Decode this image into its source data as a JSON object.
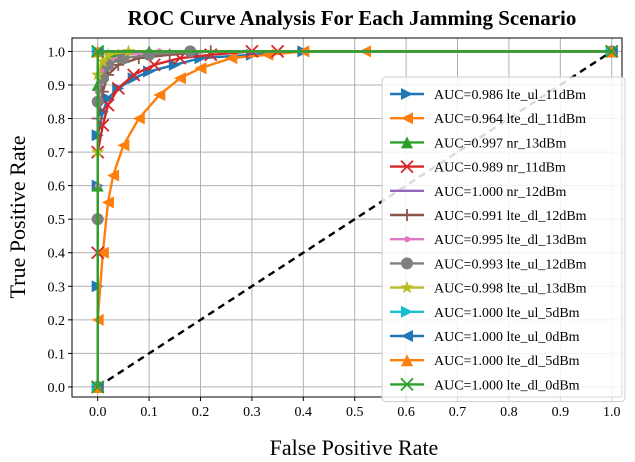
{
  "chart_data": {
    "type": "line",
    "title": "ROC Curve Analysis For Each Jamming Scenario",
    "xlabel": "False Positive Rate",
    "ylabel": "True Positive Rate",
    "xlim": [
      -0.05,
      1.02
    ],
    "ylim": [
      -0.03,
      1.04
    ],
    "xticks": [
      "0.0",
      "0.1",
      "0.2",
      "0.3",
      "0.4",
      "0.5",
      "0.6",
      "0.7",
      "0.8",
      "0.9",
      "1.0"
    ],
    "yticks": [
      "0.0",
      "0.1",
      "0.2",
      "0.3",
      "0.4",
      "0.5",
      "0.6",
      "0.7",
      "0.8",
      "0.9",
      "1.0"
    ],
    "grid": true,
    "legend_position": "right",
    "series": [
      {
        "name": "AUC=0.986 lte_ul_11dBm",
        "color": "#1f77b4",
        "marker": "triangle-right",
        "x": [
          0.0,
          0.0,
          0.0,
          0.0,
          0.01,
          0.02,
          0.04,
          0.07,
          0.1,
          0.15,
          0.2,
          0.3,
          0.4,
          1.0
        ],
        "y": [
          0.0,
          0.3,
          0.6,
          0.75,
          0.82,
          0.86,
          0.89,
          0.92,
          0.94,
          0.96,
          0.98,
          0.99,
          1.0,
          1.0
        ]
      },
      {
        "name": "AUC=0.964 lte_dl_11dBm",
        "color": "#ff7f0e",
        "marker": "triangle-left",
        "x": [
          0.0,
          0.0,
          0.01,
          0.02,
          0.03,
          0.05,
          0.08,
          0.12,
          0.16,
          0.2,
          0.26,
          0.33,
          0.4,
          0.52,
          1.0
        ],
        "y": [
          0.0,
          0.2,
          0.4,
          0.55,
          0.63,
          0.72,
          0.8,
          0.87,
          0.92,
          0.95,
          0.98,
          0.99,
          1.0,
          1.0,
          1.0
        ]
      },
      {
        "name": "AUC=0.997 nr_13dBm",
        "color": "#2ca02c",
        "marker": "triangle-up",
        "x": [
          0.0,
          0.0,
          0.0,
          0.01,
          0.02,
          0.04,
          0.1,
          1.0
        ],
        "y": [
          0.0,
          0.6,
          0.9,
          0.95,
          0.98,
          0.99,
          1.0,
          1.0
        ]
      },
      {
        "name": "AUC=0.989 nr_11dBm",
        "color": "#d62728",
        "marker": "x",
        "x": [
          0.0,
          0.0,
          0.0,
          0.01,
          0.02,
          0.04,
          0.07,
          0.11,
          0.16,
          0.22,
          0.3,
          0.35,
          1.0
        ],
        "y": [
          0.0,
          0.4,
          0.7,
          0.78,
          0.84,
          0.89,
          0.93,
          0.96,
          0.98,
          0.99,
          1.0,
          1.0,
          1.0
        ]
      },
      {
        "name": "AUC=1.000 nr_12dBm",
        "color": "#9467bd",
        "marker": "line",
        "x": [
          0.0,
          0.0,
          1.0
        ],
        "y": [
          0.0,
          1.0,
          1.0
        ]
      },
      {
        "name": "AUC=0.991 lte_dl_12dBm",
        "color": "#8c564b",
        "marker": "plus",
        "x": [
          0.0,
          0.0,
          0.0,
          0.01,
          0.02,
          0.04,
          0.08,
          0.14,
          0.22,
          1.0
        ],
        "y": [
          0.0,
          0.5,
          0.8,
          0.88,
          0.93,
          0.96,
          0.98,
          0.99,
          1.0,
          1.0
        ]
      },
      {
        "name": "AUC=0.995 lte_dl_13dBm",
        "color": "#e377c2",
        "marker": "dot",
        "x": [
          0.0,
          0.0,
          0.0,
          0.01,
          0.02,
          0.05,
          0.12,
          1.0
        ],
        "y": [
          0.0,
          0.6,
          0.88,
          0.94,
          0.97,
          0.99,
          1.0,
          1.0
        ]
      },
      {
        "name": "AUC=0.993 lte_ul_12dBm",
        "color": "#7f7f7f",
        "marker": "circle",
        "x": [
          0.0,
          0.0,
          0.0,
          0.01,
          0.02,
          0.05,
          0.1,
          0.18,
          1.0
        ],
        "y": [
          0.0,
          0.5,
          0.85,
          0.92,
          0.96,
          0.98,
          0.99,
          1.0,
          1.0
        ]
      },
      {
        "name": "AUC=0.998 lte_ul_13dBm",
        "color": "#bcbd22",
        "marker": "star",
        "x": [
          0.0,
          0.0,
          0.0,
          0.01,
          0.02,
          0.06,
          1.0
        ],
        "y": [
          0.0,
          0.7,
          0.93,
          0.97,
          0.99,
          1.0,
          1.0
        ]
      },
      {
        "name": "AUC=1.000 lte_ul_5dBm",
        "color": "#17becf",
        "marker": "triangle-right",
        "x": [
          0.0,
          0.0,
          1.0
        ],
        "y": [
          0.0,
          1.0,
          1.0
        ]
      },
      {
        "name": "AUC=1.000 lte_ul_0dBm",
        "color": "#1f77b4",
        "marker": "triangle-left",
        "x": [
          0.0,
          0.0,
          1.0
        ],
        "y": [
          0.0,
          1.0,
          1.0
        ]
      },
      {
        "name": "AUC=1.000 lte_dl_5dBm",
        "color": "#ff7f0e",
        "marker": "triangle-up",
        "x": [
          0.0,
          0.0,
          1.0
        ],
        "y": [
          0.0,
          1.0,
          1.0
        ]
      },
      {
        "name": "AUC=1.000 lte_dl_0dBm",
        "color": "#2ca02c",
        "marker": "x",
        "x": [
          0.0,
          0.0,
          1.0
        ],
        "y": [
          0.0,
          1.0,
          1.0
        ]
      }
    ],
    "reference_line": {
      "x": [
        0.0,
        1.0
      ],
      "y": [
        0.0,
        1.0
      ],
      "color": "#000000",
      "style": "dashed"
    }
  }
}
